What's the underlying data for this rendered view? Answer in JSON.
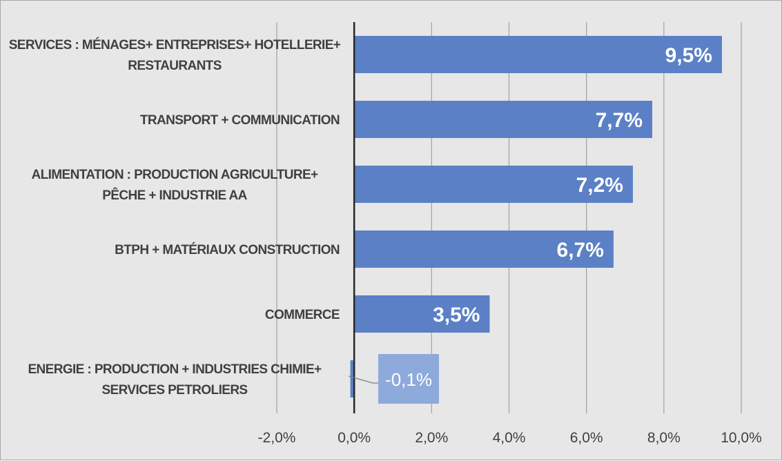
{
  "chart_data": {
    "type": "bar",
    "orientation": "horizontal",
    "title": "",
    "xlabel": "",
    "ylabel": "",
    "categories": [
      [
        "SERVICES : MÉNAGES+ ENTREPRISES+ HOTELLERIE+",
        "RESTAURANTS"
      ],
      [
        "TRANSPORT + COMMUNICATION"
      ],
      [
        "ALIMENTATION : PRODUCTION AGRICULTURE+",
        "PÊCHE + INDUSTRIE AA"
      ],
      [
        "BTPH + MATÉRIAUX CONSTRUCTION"
      ],
      [
        "COMMERCE"
      ],
      [
        "ENERGIE : PRODUCTION + INDUSTRIES CHIMIE+",
        "SERVICES PETROLIERS"
      ]
    ],
    "values": [
      9.5,
      7.7,
      7.2,
      6.7,
      3.5,
      -0.1
    ],
    "value_labels": [
      "9,5%",
      "7,7%",
      "7,2%",
      "6,7%",
      "3,5%",
      "-0,1%"
    ],
    "xlim": [
      -2.0,
      10.0
    ],
    "xticks": [
      -2.0,
      0.0,
      2.0,
      4.0,
      6.0,
      8.0,
      10.0
    ],
    "xtick_labels": [
      "-2,0%",
      "0,0%",
      "2,0%",
      "4,0%",
      "6,0%",
      "8,0%",
      "10,0%"
    ],
    "grid": "vertical",
    "legend": "none",
    "colors": {
      "bar": "#5b80c6",
      "negative_label_box": "#8eaadb",
      "gridline": "#a6a6a6",
      "axis": "#262626",
      "background": "#e7e7e7",
      "text": "#404040"
    }
  }
}
